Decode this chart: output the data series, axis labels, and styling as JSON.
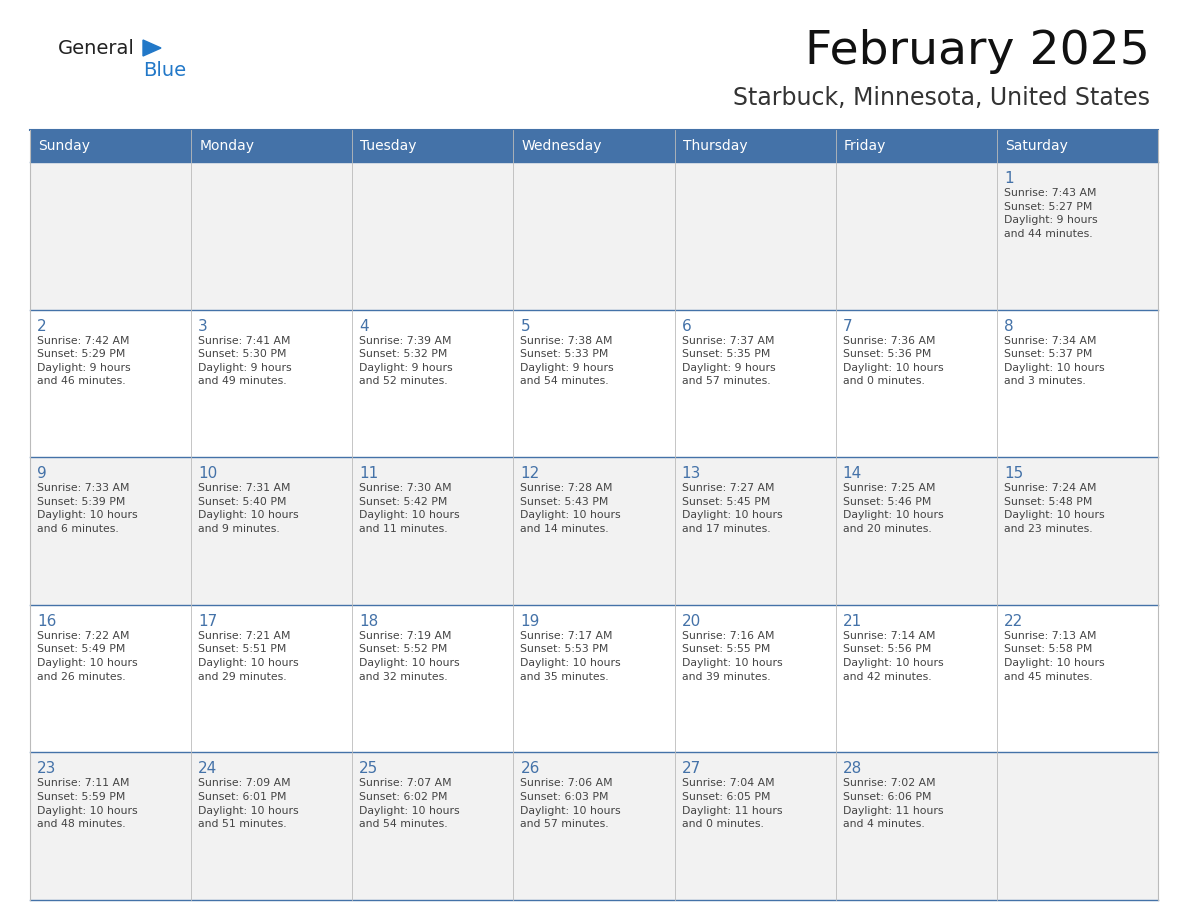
{
  "title": "February 2025",
  "subtitle": "Starbuck, Minnesota, United States",
  "days_of_week": [
    "Sunday",
    "Monday",
    "Tuesday",
    "Wednesday",
    "Thursday",
    "Friday",
    "Saturday"
  ],
  "header_bg": "#4472a8",
  "header_text": "#ffffff",
  "cell_bg_odd": "#f2f2f2",
  "cell_bg_even": "#ffffff",
  "border_color_dark": "#4472a8",
  "border_color_light": "#bbbbbb",
  "day_number_color": "#4472a8",
  "text_color": "#444444",
  "logo_general_color": "#222222",
  "logo_blue_color": "#2278c8",
  "logo_triangle_color": "#2278c8",
  "calendar_data": [
    [
      null,
      null,
      null,
      null,
      null,
      null,
      {
        "day": 1,
        "sunrise": "7:43 AM",
        "sunset": "5:27 PM",
        "daylight": "9 hours\nand 44 minutes."
      }
    ],
    [
      {
        "day": 2,
        "sunrise": "7:42 AM",
        "sunset": "5:29 PM",
        "daylight": "9 hours\nand 46 minutes."
      },
      {
        "day": 3,
        "sunrise": "7:41 AM",
        "sunset": "5:30 PM",
        "daylight": "9 hours\nand 49 minutes."
      },
      {
        "day": 4,
        "sunrise": "7:39 AM",
        "sunset": "5:32 PM",
        "daylight": "9 hours\nand 52 minutes."
      },
      {
        "day": 5,
        "sunrise": "7:38 AM",
        "sunset": "5:33 PM",
        "daylight": "9 hours\nand 54 minutes."
      },
      {
        "day": 6,
        "sunrise": "7:37 AM",
        "sunset": "5:35 PM",
        "daylight": "9 hours\nand 57 minutes."
      },
      {
        "day": 7,
        "sunrise": "7:36 AM",
        "sunset": "5:36 PM",
        "daylight": "10 hours\nand 0 minutes."
      },
      {
        "day": 8,
        "sunrise": "7:34 AM",
        "sunset": "5:37 PM",
        "daylight": "10 hours\nand 3 minutes."
      }
    ],
    [
      {
        "day": 9,
        "sunrise": "7:33 AM",
        "sunset": "5:39 PM",
        "daylight": "10 hours\nand 6 minutes."
      },
      {
        "day": 10,
        "sunrise": "7:31 AM",
        "sunset": "5:40 PM",
        "daylight": "10 hours\nand 9 minutes."
      },
      {
        "day": 11,
        "sunrise": "7:30 AM",
        "sunset": "5:42 PM",
        "daylight": "10 hours\nand 11 minutes."
      },
      {
        "day": 12,
        "sunrise": "7:28 AM",
        "sunset": "5:43 PM",
        "daylight": "10 hours\nand 14 minutes."
      },
      {
        "day": 13,
        "sunrise": "7:27 AM",
        "sunset": "5:45 PM",
        "daylight": "10 hours\nand 17 minutes."
      },
      {
        "day": 14,
        "sunrise": "7:25 AM",
        "sunset": "5:46 PM",
        "daylight": "10 hours\nand 20 minutes."
      },
      {
        "day": 15,
        "sunrise": "7:24 AM",
        "sunset": "5:48 PM",
        "daylight": "10 hours\nand 23 minutes."
      }
    ],
    [
      {
        "day": 16,
        "sunrise": "7:22 AM",
        "sunset": "5:49 PM",
        "daylight": "10 hours\nand 26 minutes."
      },
      {
        "day": 17,
        "sunrise": "7:21 AM",
        "sunset": "5:51 PM",
        "daylight": "10 hours\nand 29 minutes."
      },
      {
        "day": 18,
        "sunrise": "7:19 AM",
        "sunset": "5:52 PM",
        "daylight": "10 hours\nand 32 minutes."
      },
      {
        "day": 19,
        "sunrise": "7:17 AM",
        "sunset": "5:53 PM",
        "daylight": "10 hours\nand 35 minutes."
      },
      {
        "day": 20,
        "sunrise": "7:16 AM",
        "sunset": "5:55 PM",
        "daylight": "10 hours\nand 39 minutes."
      },
      {
        "day": 21,
        "sunrise": "7:14 AM",
        "sunset": "5:56 PM",
        "daylight": "10 hours\nand 42 minutes."
      },
      {
        "day": 22,
        "sunrise": "7:13 AM",
        "sunset": "5:58 PM",
        "daylight": "10 hours\nand 45 minutes."
      }
    ],
    [
      {
        "day": 23,
        "sunrise": "7:11 AM",
        "sunset": "5:59 PM",
        "daylight": "10 hours\nand 48 minutes."
      },
      {
        "day": 24,
        "sunrise": "7:09 AM",
        "sunset": "6:01 PM",
        "daylight": "10 hours\nand 51 minutes."
      },
      {
        "day": 25,
        "sunrise": "7:07 AM",
        "sunset": "6:02 PM",
        "daylight": "10 hours\nand 54 minutes."
      },
      {
        "day": 26,
        "sunrise": "7:06 AM",
        "sunset": "6:03 PM",
        "daylight": "10 hours\nand 57 minutes."
      },
      {
        "day": 27,
        "sunrise": "7:04 AM",
        "sunset": "6:05 PM",
        "daylight": "11 hours\nand 0 minutes."
      },
      {
        "day": 28,
        "sunrise": "7:02 AM",
        "sunset": "6:06 PM",
        "daylight": "11 hours\nand 4 minutes."
      },
      null
    ]
  ]
}
